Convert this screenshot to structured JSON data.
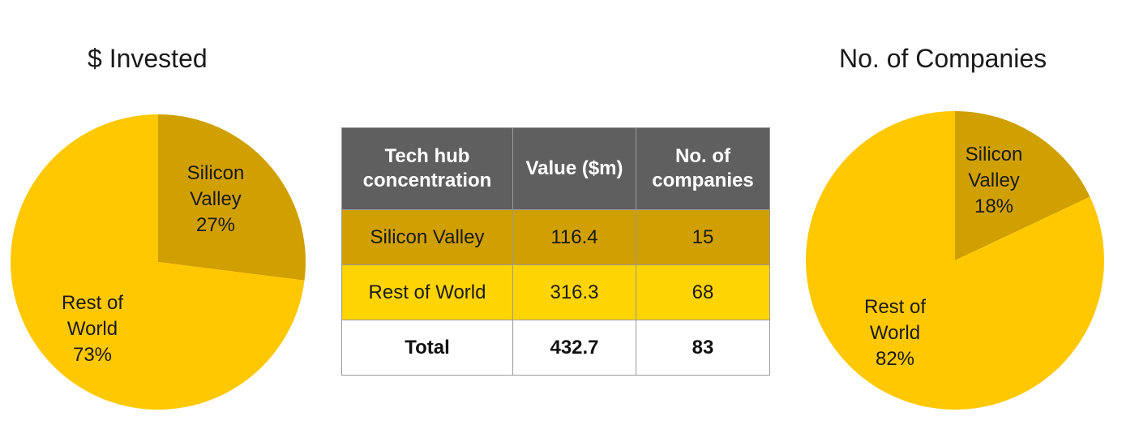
{
  "colors": {
    "silicon_valley": "#d0a000",
    "rest_of_world": "#ffc800",
    "header": "#5f5f5f",
    "row_rest": "#ffd400"
  },
  "chart_data": [
    {
      "type": "pie",
      "title": "$ Invested",
      "categories": [
        "Silicon Valley",
        "Rest of World"
      ],
      "values": [
        27,
        73
      ],
      "labels": [
        {
          "lines": [
            "Silicon",
            "Valley",
            "27%"
          ]
        },
        {
          "lines": [
            "Rest of",
            "World",
            "73%"
          ]
        }
      ]
    },
    {
      "type": "table",
      "columns": [
        "Tech hub concentration",
        "Value ($m)",
        "No. of companies"
      ],
      "rows": [
        [
          "Silicon Valley",
          "116.4",
          "15"
        ],
        [
          "Rest of World",
          "316.3",
          "68"
        ],
        [
          "Total",
          "432.7",
          "83"
        ]
      ]
    },
    {
      "type": "pie",
      "title": "No. of Companies",
      "categories": [
        "Silicon Valley",
        "Rest of World"
      ],
      "values": [
        18,
        82
      ],
      "labels": [
        {
          "lines": [
            "Silicon",
            "Valley",
            "18%"
          ]
        },
        {
          "lines": [
            "Rest of",
            "World",
            "82%"
          ]
        }
      ]
    }
  ],
  "table": {
    "header": {
      "col1_line1": "Tech hub",
      "col1_line2": "concentration",
      "col2": "Value ($m)",
      "col3_line1": "No. of",
      "col3_line2": "companies"
    },
    "rows": [
      {
        "name": "Silicon Valley",
        "value": "116.4",
        "companies": "15"
      },
      {
        "name": "Rest of World",
        "value": "316.3",
        "companies": "68"
      },
      {
        "name": "Total",
        "value": "432.7",
        "companies": "83"
      }
    ]
  }
}
